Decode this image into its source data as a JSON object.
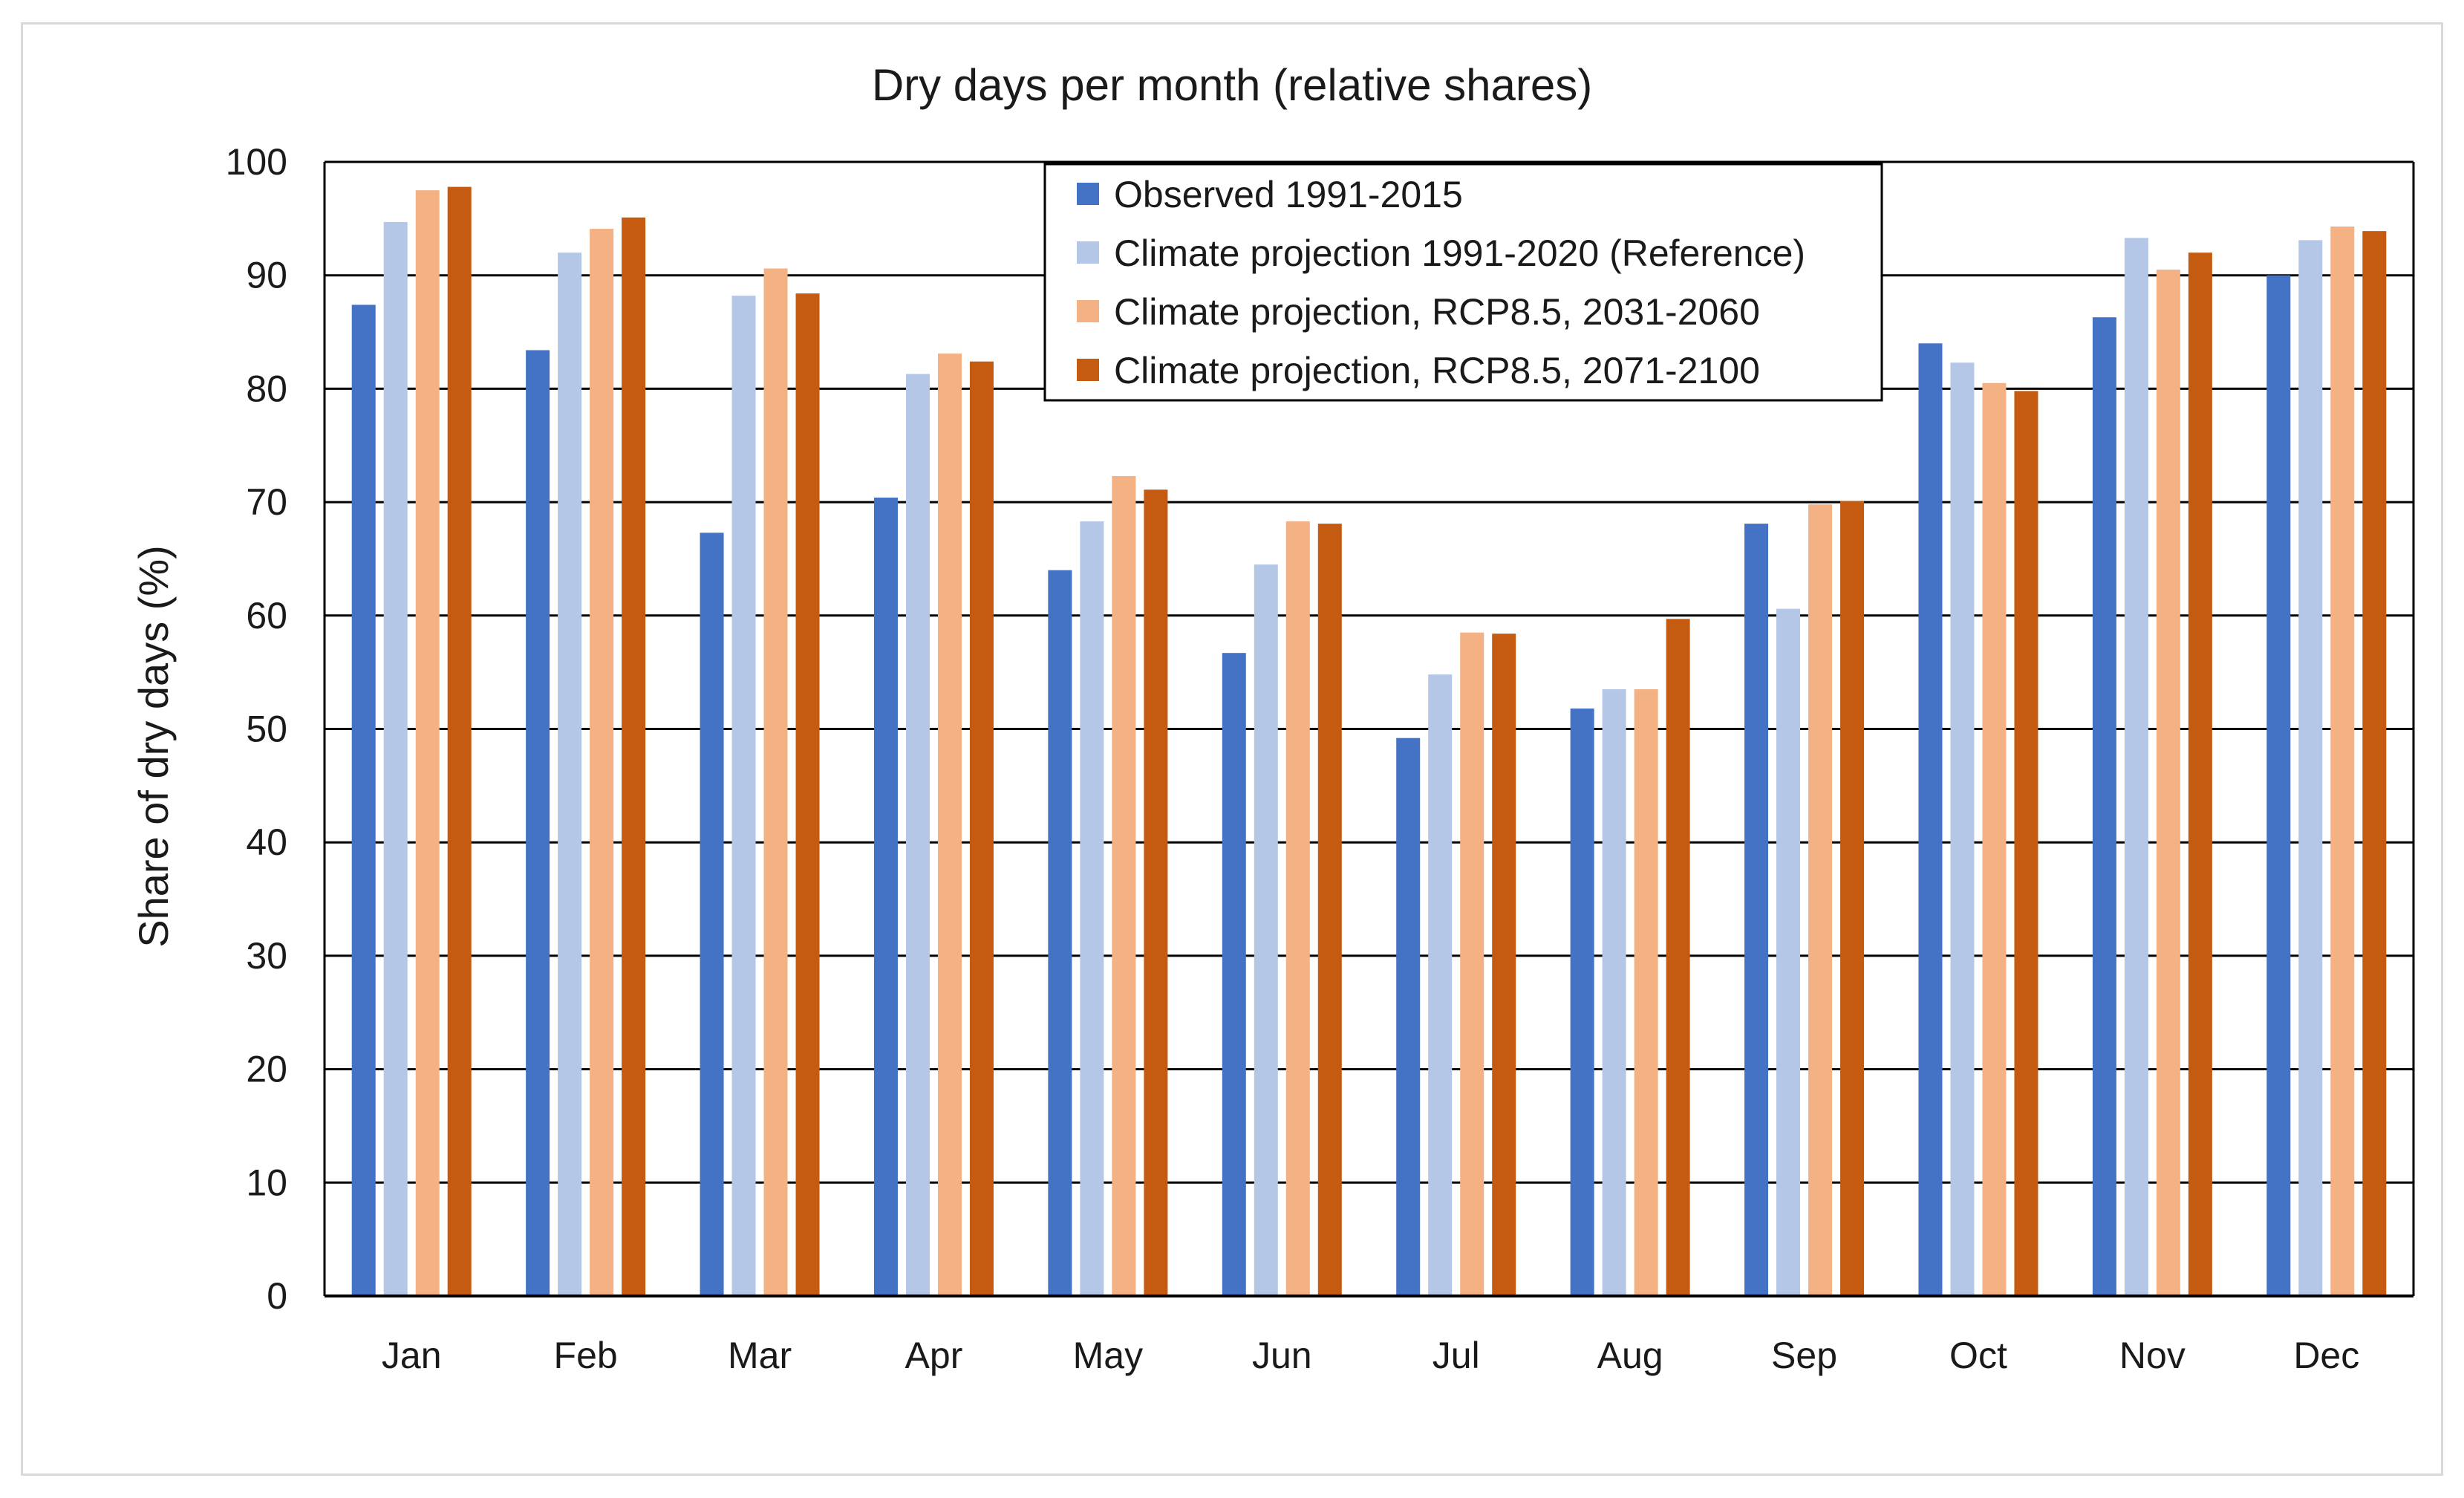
{
  "chart_data": {
    "type": "bar",
    "title": "Dry days per month (relative shares)",
    "xlabel": "",
    "ylabel": "Share of dry days (%)",
    "ylim": [
      0,
      100
    ],
    "yticks": [
      "0",
      "10",
      "20",
      "30",
      "40",
      "50",
      "60",
      "70",
      "80",
      "90",
      "100"
    ],
    "grid": true,
    "legend_position": "top-center",
    "categories": [
      "Jan",
      "Feb",
      "Mar",
      "Apr",
      "May",
      "Jun",
      "Jul",
      "Aug",
      "Sep",
      "Oct",
      "Nov",
      "Dec"
    ],
    "series": [
      {
        "name": "Observed 1991-2015",
        "color": "#4472c4",
        "values": [
          87.4,
          83.4,
          67.3,
          70.4,
          64.0,
          56.7,
          49.2,
          51.8,
          68.1,
          84.0,
          86.3,
          90.0
        ]
      },
      {
        "name": "Climate projection 1991-2020 (Reference)",
        "color": "#b4c7e7",
        "values": [
          94.7,
          92.0,
          88.2,
          81.3,
          68.3,
          64.5,
          54.8,
          53.5,
          60.6,
          82.3,
          93.3,
          93.1
        ]
      },
      {
        "name": "Climate projection, RCP8.5, 2031-2060",
        "color": "#f4b183",
        "values": [
          97.5,
          94.1,
          90.6,
          83.1,
          72.3,
          68.3,
          58.5,
          53.5,
          69.8,
          80.5,
          90.5,
          94.3
        ]
      },
      {
        "name": "Climate projection, RCP8.5, 2071-2100",
        "color": "#c55a11",
        "values": [
          97.8,
          95.1,
          88.4,
          82.4,
          71.1,
          68.1,
          58.4,
          59.7,
          70.1,
          79.8,
          92.0,
          93.9
        ]
      }
    ]
  }
}
